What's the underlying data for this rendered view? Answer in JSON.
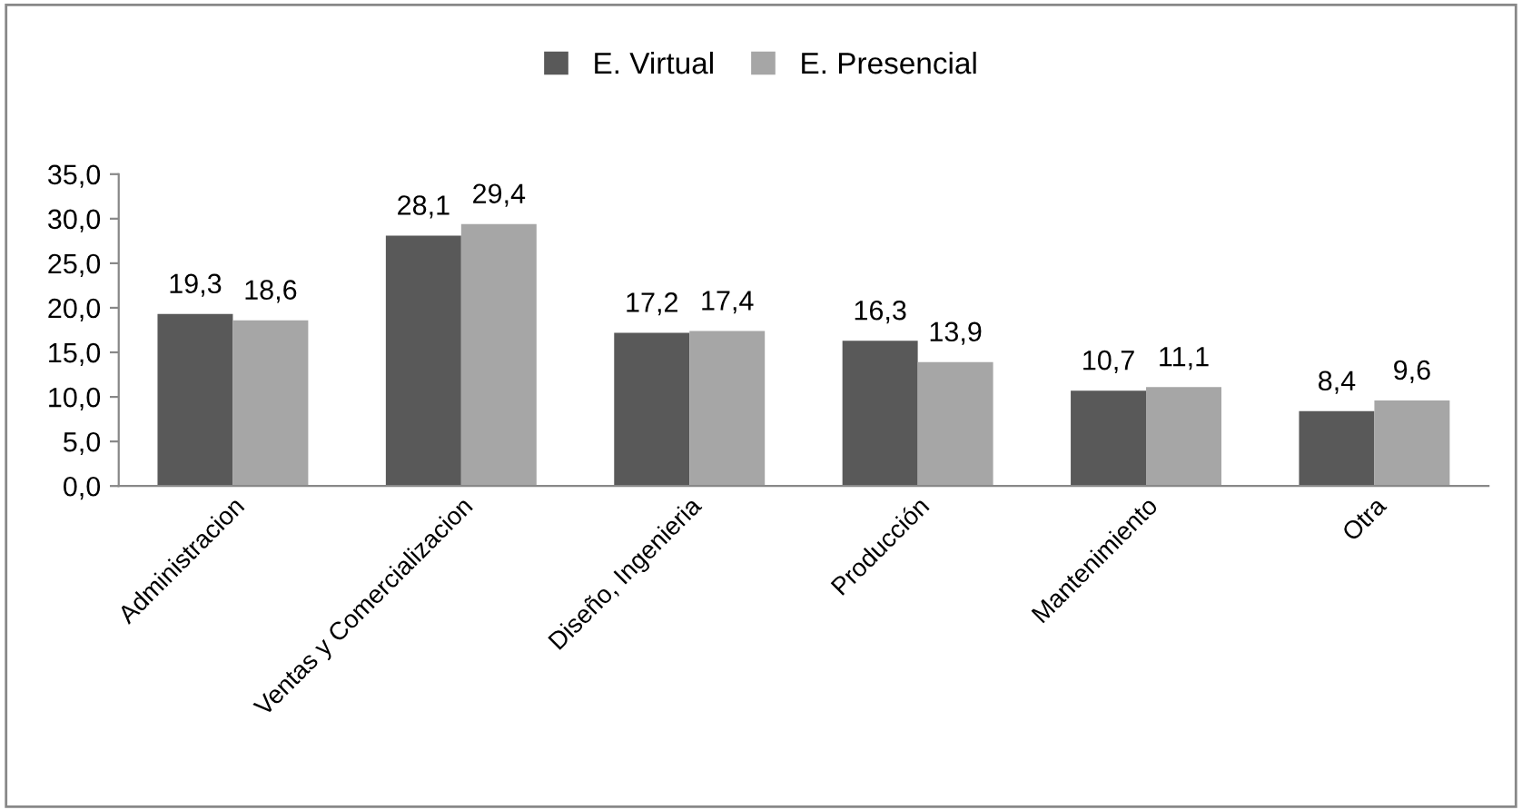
{
  "chart_data": {
    "type": "bar",
    "categories": [
      "Administracion",
      "Ventas y Comercializacion",
      "Diseño, Ingenieria",
      "Producción",
      "Mantenimiento",
      "Otra"
    ],
    "series": [
      {
        "name": "E. Virtual",
        "color": "#595959",
        "values": [
          19.3,
          28.1,
          17.2,
          16.3,
          10.7,
          8.4
        ],
        "value_labels": [
          "19,3",
          "28,1",
          "17,2",
          "16,3",
          "10,7",
          "8,4"
        ]
      },
      {
        "name": "E. Presencial",
        "color": "#a6a6a6",
        "values": [
          18.6,
          29.4,
          17.4,
          13.9,
          11.1,
          9.6
        ],
        "value_labels": [
          "18,6",
          "29,4",
          "17,4",
          "13,9",
          "11,1",
          "9,6"
        ]
      }
    ],
    "ylim": [
      0,
      35
    ],
    "yticks": [
      {
        "value": 0,
        "label": "0,0"
      },
      {
        "value": 5,
        "label": "5,0"
      },
      {
        "value": 10,
        "label": "10,0"
      },
      {
        "value": 15,
        "label": "15,0"
      },
      {
        "value": 20,
        "label": "20,0"
      },
      {
        "value": 25,
        "label": "25,0"
      },
      {
        "value": 30,
        "label": "30,0"
      },
      {
        "value": 35,
        "label": "35,0"
      }
    ],
    "grid": false,
    "legend": "top"
  }
}
